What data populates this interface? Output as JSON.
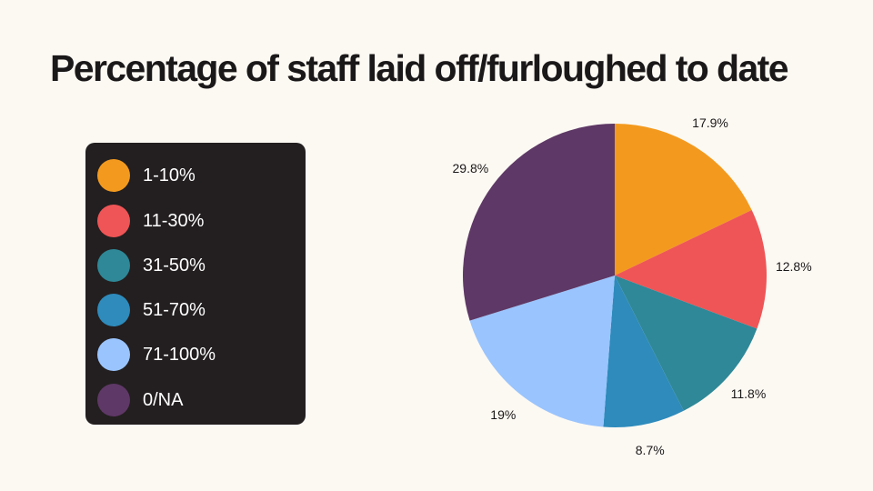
{
  "chart_data": {
    "type": "pie",
    "title": "Percentage of staff laid off/furloughed to date",
    "legend_position": "left",
    "categories": [
      "1-10%",
      "11-30%",
      "31-50%",
      "51-70%",
      "71-100%",
      "0/NA"
    ],
    "values": [
      17.9,
      12.8,
      11.8,
      8.7,
      19,
      29.8
    ],
    "value_labels": [
      "17.9%",
      "12.8%",
      "11.8%",
      "8.7%",
      "19%",
      "29.8%"
    ],
    "colors": [
      "#f39a1e",
      "#ef5556",
      "#2e8897",
      "#2e8bbc",
      "#9ac4fd",
      "#5e3866"
    ]
  }
}
